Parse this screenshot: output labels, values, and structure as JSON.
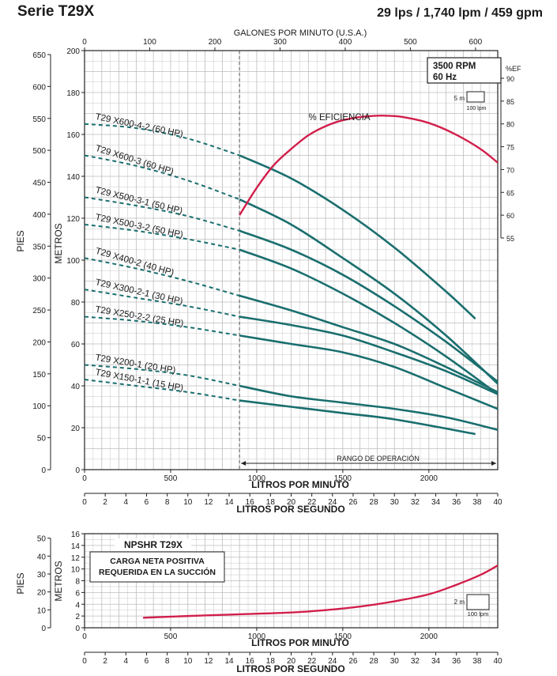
{
  "page": {
    "title": "Serie T29X",
    "subtitle": "29 lps / 1,740 lpm / 459 gpm"
  },
  "colors": {
    "pump": "#1a6e6e",
    "efficiency": "#d21f4b",
    "grid": "#bdbdbd",
    "axis": "#222222"
  },
  "chart_data": [
    {
      "type": "line",
      "title": "",
      "top_axis": {
        "label": "GALONES POR MINUTO (U.S.A.)",
        "ticks": [
          0,
          100,
          200,
          300,
          400,
          500,
          600
        ]
      },
      "x_axis": {
        "label": "LITROS POR MINUTO",
        "range": [
          0,
          2400
        ],
        "ticks": [
          0,
          500,
          1000,
          1500,
          2000
        ]
      },
      "x2_axis": {
        "label": "LITROS POR SEGUNDO",
        "ticks": [
          0,
          2,
          4,
          6,
          8,
          10,
          12,
          14,
          16,
          18,
          20,
          22,
          24,
          26,
          28,
          30,
          32,
          34,
          36,
          38,
          40
        ]
      },
      "y_axis": {
        "label": "METROS",
        "range": [
          0,
          200
        ],
        "ticks": [
          0,
          20,
          40,
          60,
          80,
          100,
          120,
          140,
          160,
          180,
          200
        ]
      },
      "y_axis_left": {
        "label": "PIES",
        "ticks": [
          0,
          50,
          100,
          150,
          200,
          250,
          300,
          350,
          400,
          450,
          500,
          550,
          600,
          650
        ]
      },
      "y_axis_right": {
        "label": "%EF",
        "range": [
          55,
          90
        ],
        "ticks": [
          55,
          60,
          65,
          70,
          75,
          80,
          85,
          90
        ]
      },
      "rpm_box": [
        "3500 RPM",
        "60 Hz"
      ],
      "scale_box": {
        "y_label": "5 m",
        "x_label": "100 lpm"
      },
      "operating_range": {
        "label": "RANGO DE OPERACIÓN",
        "from": 900,
        "to": 2400
      },
      "dashed_until": 900,
      "series": [
        {
          "name": "T29 X600-4-2 (60 HP)",
          "x": [
            0,
            300,
            600,
            900,
            1200,
            1500,
            1800,
            2100,
            2270
          ],
          "y": [
            165,
            163,
            158,
            150,
            139,
            124,
            106,
            85,
            72
          ]
        },
        {
          "name": "T29 X600-3 (60 HP)",
          "x": [
            0,
            300,
            600,
            900,
            1200,
            1500,
            1800,
            2100,
            2400
          ],
          "y": [
            150,
            145,
            138,
            129,
            117,
            101,
            84,
            64,
            41
          ]
        },
        {
          "name": "T29 X500-3-1 (50 HP)",
          "x": [
            0,
            300,
            600,
            900,
            1200,
            1500,
            1800,
            2100,
            2400
          ],
          "y": [
            130,
            126,
            121,
            114,
            105,
            93,
            78,
            61,
            42
          ]
        },
        {
          "name": "T29 X500-3-2 (50 HP)",
          "x": [
            0,
            300,
            600,
            900,
            1200,
            1500,
            1800,
            2100,
            2400
          ],
          "y": [
            117,
            114,
            110,
            105,
            96,
            84,
            70,
            54,
            36
          ]
        },
        {
          "name": "T29 X400-2 (40 HP)",
          "x": [
            0,
            300,
            600,
            900,
            1200,
            1500,
            1800,
            2100,
            2400
          ],
          "y": [
            101,
            96,
            90,
            83,
            76,
            68,
            60,
            49,
            37
          ]
        },
        {
          "name": "T29 X300-2-1 (30 HP)",
          "x": [
            0,
            300,
            600,
            900,
            1200,
            1500,
            1800,
            2100,
            2400
          ],
          "y": [
            86,
            82,
            78,
            73,
            69,
            64,
            56,
            47,
            36
          ]
        },
        {
          "name": "T29 X250-2-2 (25 HP)",
          "x": [
            0,
            300,
            600,
            900,
            1200,
            1500,
            1800,
            2100,
            2400
          ],
          "y": [
            73,
            71,
            68,
            64,
            60,
            56,
            49,
            39,
            29
          ]
        },
        {
          "name": "T29 X200-1 (20 HP)",
          "x": [
            0,
            300,
            600,
            900,
            1200,
            1500,
            1800,
            2100,
            2400
          ],
          "y": [
            50,
            48,
            45,
            40,
            35,
            32,
            29,
            25,
            19
          ]
        },
        {
          "name": "T29 X150-1-1 (15 HP)",
          "x": [
            0,
            300,
            600,
            900,
            1200,
            1500,
            1800,
            2270
          ],
          "y": [
            43,
            40,
            37,
            33,
            30,
            27,
            24,
            17
          ]
        }
      ],
      "efficiency": {
        "label": "% EFICIENCIA",
        "x": [
          900,
          1000,
          1100,
          1200,
          1300,
          1400,
          1500,
          1600,
          1700,
          1750,
          1850,
          2000,
          2150,
          2300,
          2400
        ],
        "y": [
          60,
          66,
          71,
          74.5,
          77.5,
          79.5,
          80.8,
          81.5,
          81.8,
          81.8,
          81.5,
          80.2,
          77.8,
          74.5,
          71.5
        ]
      }
    },
    {
      "type": "line",
      "title": "NPSHR T29X",
      "box_lines": [
        "CARGA NETA POSITIVA",
        "REQUERIDA EN LA SUCCIÓN"
      ],
      "x_axis": {
        "label": "LITROS POR MINUTO",
        "range": [
          0,
          2400
        ],
        "ticks": [
          0,
          500,
          1000,
          1500,
          2000
        ]
      },
      "x2_axis": {
        "label": "LITROS POR SEGUNDO",
        "ticks": [
          0,
          2,
          4,
          6,
          8,
          10,
          12,
          14,
          16,
          18,
          20,
          22,
          24,
          26,
          28,
          30,
          32,
          34,
          36,
          38,
          40
        ]
      },
      "y_axis": {
        "label": "METROS",
        "range": [
          0,
          16
        ],
        "ticks": [
          0,
          2,
          4,
          6,
          8,
          10,
          12,
          14,
          16
        ]
      },
      "y_axis_left": {
        "label": "PIES",
        "ticks": [
          0,
          10,
          20,
          30,
          40,
          50
        ]
      },
      "scale_box": {
        "y_label": "2 m",
        "x_label": "100 lpm"
      },
      "series": [
        {
          "name": "NPSHR",
          "x": [
            340,
            600,
            900,
            1200,
            1400,
            1600,
            1800,
            2000,
            2150,
            2300,
            2400
          ],
          "y": [
            1.7,
            2.0,
            2.3,
            2.6,
            3.0,
            3.6,
            4.5,
            5.7,
            7.2,
            9.0,
            10.6
          ]
        }
      ]
    }
  ]
}
